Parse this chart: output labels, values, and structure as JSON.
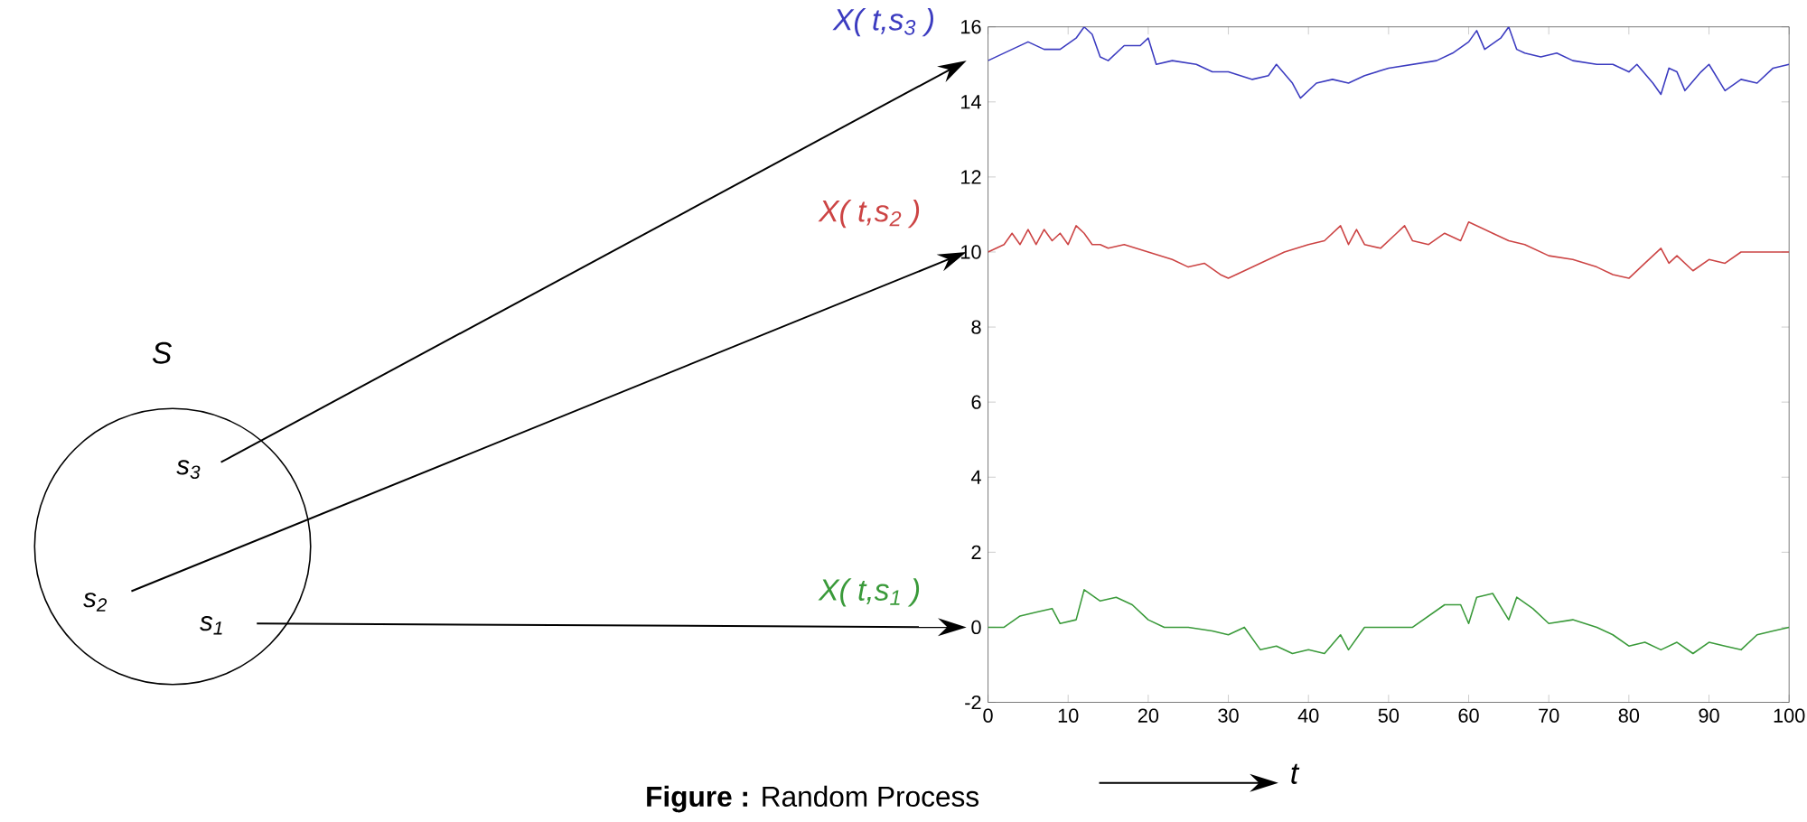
{
  "chart_data": {
    "type": "line",
    "annotations": [
      "S",
      "s$_{3}$",
      "s$_{2}$",
      "s$_{1}$",
      "**Figure :** Random Process",
      "t"
    ],
    "xlim": [
      0,
      100
    ],
    "ylim": [
      -2,
      16
    ],
    "xticks": [
      0,
      10,
      20,
      30,
      40,
      50,
      60,
      70,
      80,
      90,
      100
    ],
    "yticks": [
      -2,
      0,
      2,
      4,
      6,
      8,
      10,
      12,
      14,
      16
    ],
    "series": [
      {
        "name": "X( t,s$_{3}$ )",
        "color": "#3c3cc0",
        "x": [
          0,
          3,
          5,
          7,
          9,
          11,
          12,
          13,
          14,
          15,
          17,
          19,
          20,
          21,
          23,
          26,
          28,
          30,
          33,
          35,
          36,
          38,
          39,
          41,
          43,
          45,
          47,
          50,
          53,
          56,
          58,
          60,
          61,
          62,
          64,
          65,
          66,
          67,
          69,
          71,
          73,
          76,
          78,
          80,
          81,
          83,
          84,
          85,
          86,
          87,
          89,
          90,
          92,
          94,
          96,
          98,
          100
        ],
        "values": [
          15.1,
          15.4,
          15.6,
          15.4,
          15.4,
          15.7,
          16,
          15.8,
          15.2,
          15.1,
          15.5,
          15.5,
          15.7,
          15.0,
          15.1,
          15.0,
          14.8,
          14.8,
          14.6,
          14.7,
          15.0,
          14.5,
          14.1,
          14.5,
          14.6,
          14.5,
          14.7,
          14.9,
          15.0,
          15.1,
          15.3,
          15.6,
          15.9,
          15.4,
          15.7,
          16,
          15.4,
          15.3,
          15.2,
          15.3,
          15.1,
          15.0,
          15.0,
          14.8,
          15.0,
          14.5,
          14.2,
          14.9,
          14.8,
          14.3,
          14.8,
          15.0,
          14.3,
          14.6,
          14.5,
          14.9,
          15.0
        ]
      },
      {
        "name": "X( t,s$_{2}$ )",
        "color": "#cc4444",
        "x": [
          0,
          2,
          3,
          4,
          5,
          6,
          7,
          8,
          9,
          10,
          11,
          12,
          13,
          14,
          15,
          17,
          20,
          23,
          25,
          27,
          29,
          30,
          32,
          35,
          37,
          40,
          42,
          44,
          45,
          46,
          47,
          49,
          51,
          52,
          53,
          55,
          57,
          59,
          60,
          63,
          65,
          67,
          70,
          73,
          76,
          78,
          80,
          82,
          84,
          85,
          86,
          88,
          90,
          92,
          94,
          97,
          100
        ],
        "values": [
          10,
          10.2,
          10.5,
          10.2,
          10.6,
          10.2,
          10.6,
          10.3,
          10.5,
          10.2,
          10.7,
          10.5,
          10.2,
          10.2,
          10.1,
          10.2,
          10,
          9.8,
          9.6,
          9.7,
          9.4,
          9.3,
          9.5,
          9.8,
          10,
          10.2,
          10.3,
          10.7,
          10.2,
          10.6,
          10.2,
          10.1,
          10.5,
          10.7,
          10.3,
          10.2,
          10.5,
          10.3,
          10.8,
          10.5,
          10.3,
          10.2,
          9.9,
          9.8,
          9.6,
          9.4,
          9.3,
          9.7,
          10.1,
          9.7,
          9.9,
          9.5,
          9.8,
          9.7,
          10,
          10,
          10
        ]
      },
      {
        "name": "X( t,s$_{1}$ )",
        "color": "#3a9a3a",
        "x": [
          0,
          2,
          4,
          6,
          8,
          9,
          11,
          12,
          14,
          16,
          18,
          20,
          22,
          25,
          28,
          30,
          32,
          34,
          36,
          38,
          40,
          42,
          44,
          45,
          47,
          50,
          53,
          55,
          57,
          59,
          60,
          61,
          63,
          65,
          66,
          68,
          70,
          73,
          76,
          78,
          80,
          82,
          84,
          86,
          88,
          90,
          92,
          94,
          96,
          98,
          100
        ],
        "values": [
          0,
          0,
          0.3,
          0.4,
          0.5,
          0.1,
          0.2,
          1.0,
          0.7,
          0.8,
          0.6,
          0.2,
          0,
          0,
          -0.1,
          -0.2,
          0,
          -0.6,
          -0.5,
          -0.7,
          -0.6,
          -0.7,
          -0.2,
          -0.6,
          0,
          0,
          0,
          0.3,
          0.6,
          0.6,
          0.1,
          0.8,
          0.9,
          0.2,
          0.8,
          0.5,
          0.1,
          0.2,
          0,
          -0.2,
          -0.5,
          -0.4,
          -0.6,
          -0.4,
          -0.7,
          -0.4,
          -0.5,
          -0.6,
          -0.2,
          -0.1,
          0
        ]
      }
    ]
  }
}
